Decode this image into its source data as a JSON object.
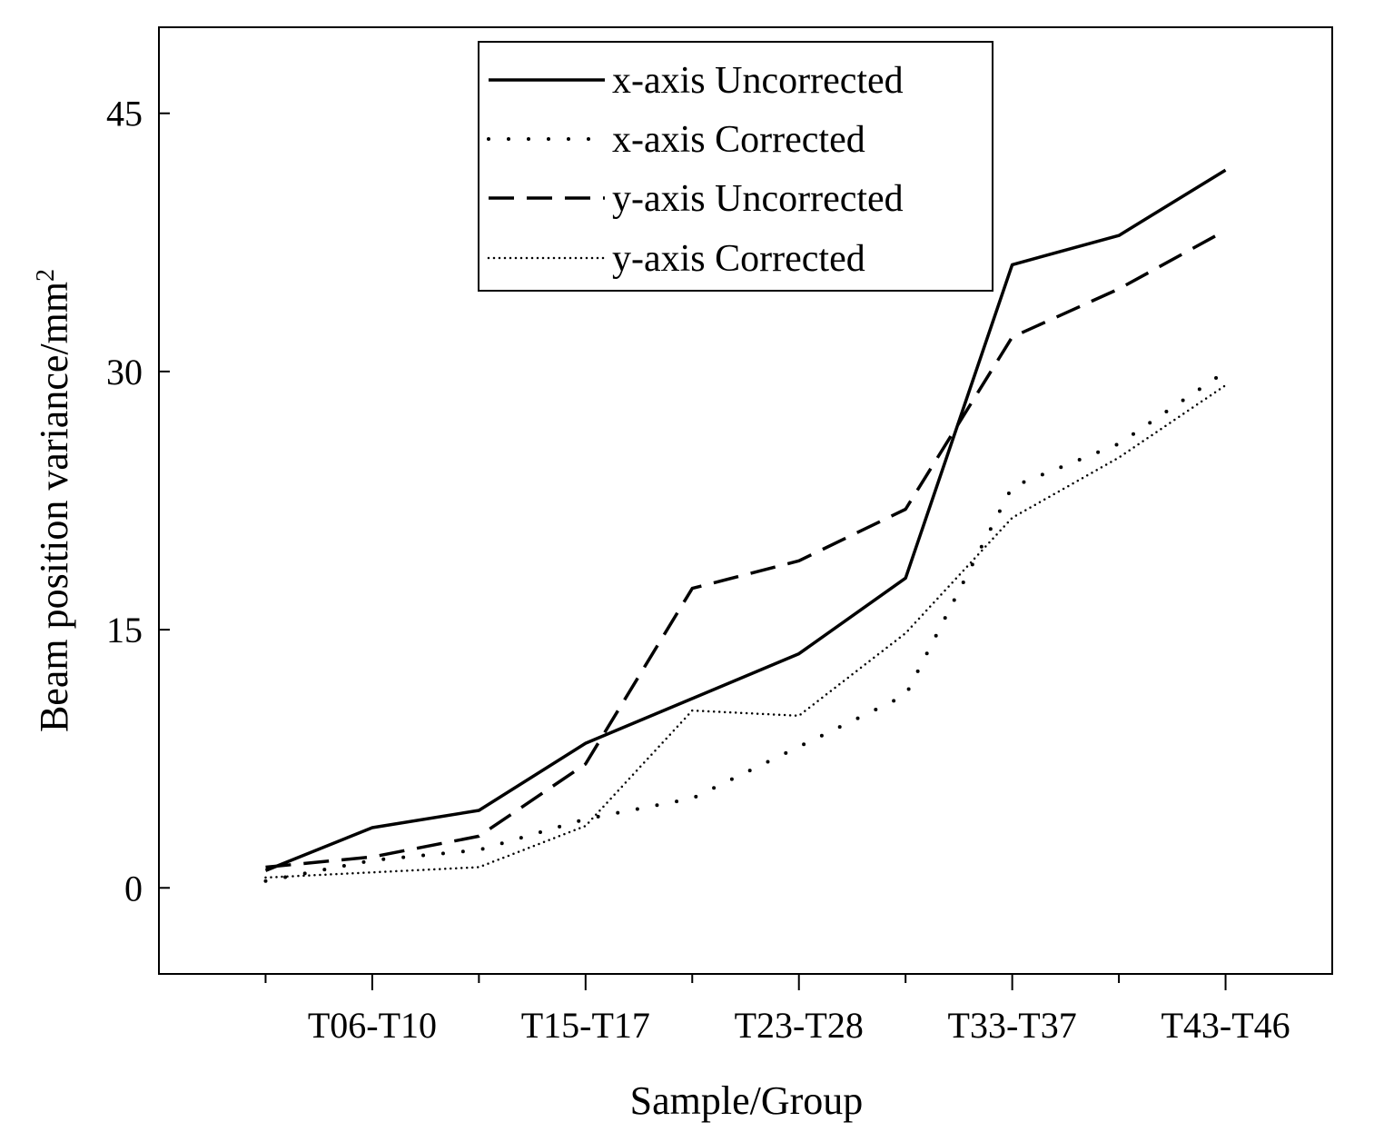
{
  "chart_data": {
    "type": "line",
    "xlabel": "Sample/Group",
    "ylabel": "Beam position variance/mm",
    "ylabel_superscript": "2",
    "ylim": [
      -5,
      50
    ],
    "xlim": [
      0,
      11
    ],
    "yticks": [
      0,
      15,
      30,
      45
    ],
    "x_tick_labels": [
      "T06-T10",
      "T15-T17",
      "T23-T28",
      "T33-T37",
      "T43-T46"
    ],
    "x_tick_label_positions": [
      2,
      4,
      6,
      8,
      10
    ],
    "x": [
      1,
      2,
      3,
      4,
      5,
      6,
      7,
      8,
      9,
      10
    ],
    "series": [
      {
        "name": "x-axis Uncorrected",
        "style": "solid",
        "values": [
          1.0,
          3.5,
          4.5,
          8.4,
          11.0,
          13.6,
          18.0,
          36.2,
          37.9,
          41.7
        ]
      },
      {
        "name": "x-axis Corrected",
        "style": "dotted-sparse",
        "values": [
          0.4,
          1.6,
          2.2,
          4.0,
          5.2,
          8.2,
          11.2,
          23.3,
          25.8,
          30.0
        ]
      },
      {
        "name": "y-axis Uncorrected",
        "style": "dashed",
        "values": [
          1.2,
          1.8,
          3.0,
          7.2,
          17.4,
          19.0,
          22.0,
          32.0,
          34.8,
          38.2
        ]
      },
      {
        "name": "y-axis Corrected",
        "style": "dotted-dense",
        "values": [
          0.6,
          0.9,
          1.2,
          3.6,
          10.3,
          10.0,
          14.8,
          21.5,
          25.0,
          29.2
        ]
      }
    ]
  }
}
